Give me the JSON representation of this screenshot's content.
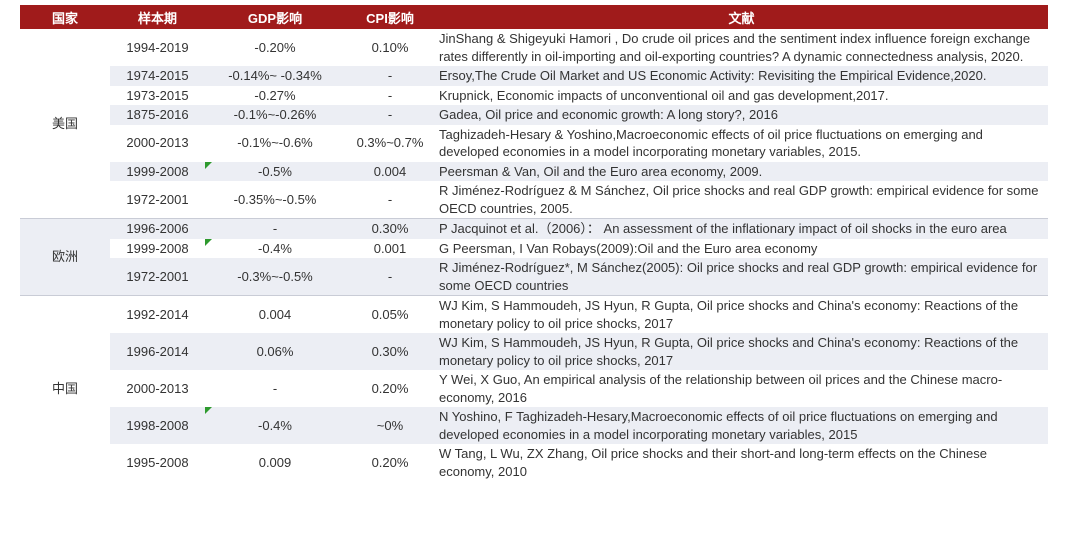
{
  "table": {
    "columns": [
      "国家",
      "样本期",
      "GDP影响",
      "CPI影响",
      "文献"
    ],
    "groups": [
      {
        "country": "美国",
        "rows": [
          [
            "1994-2019",
            "-0.20%",
            "0.10%",
            "JinShang & Shigeyuki Hamori , Do crude oil prices and the sentiment index influence foreign exchange rates differently in oil-importing and oil-exporting countries? A dynamic connectedness analysis, 2020."
          ],
          [
            "1974-2015",
            "-0.14%~ -0.34%",
            "-",
            "Ersoy,The Crude Oil Market and US Economic Activity: Revisiting the Empirical Evidence,2020."
          ],
          [
            "1973-2015",
            "-0.27%",
            "-",
            "Krupnick, Economic impacts of unconventional oil and gas development,2017."
          ],
          [
            "1875-2016",
            "-0.1%~-0.26%",
            "-",
            "Gadea, Oil price and economic growth: A long story?, 2016"
          ],
          [
            "2000-2013",
            "-0.1%~-0.6%",
            "0.3%~0.7%",
            "Taghizadeh-Hesary & Yoshino,Macroeconomic effects of oil price fluctuations on emerging and developed economies in a model incorporating monetary variables, 2015."
          ],
          [
            "1999-2008",
            "-0.5%",
            "0.004",
            "Peersman & Van, Oil and the Euro area economy, 2009."
          ],
          [
            "1972-2001",
            "-0.35%~-0.5%",
            "-",
            "R Jiménez-Rodríguez & M Sánchez, Oil price shocks and real GDP growth: empirical evidence for some OECD countries, 2005."
          ]
        ]
      },
      {
        "country": "欧洲",
        "rows": [
          [
            "1996-2006",
            "-",
            "0.30%",
            "P Jacquinot et al.（2006）： An assessment of the inflationary impact of oil shocks in the euro area"
          ],
          [
            "1999-2008",
            "-0.4%",
            "0.001",
            "G Peersman, I Van Robays(2009):Oil and the Euro area economy"
          ],
          [
            "1972-2001",
            "-0.3%~-0.5%",
            "-",
            "R Jiménez-Rodríguez*, M Sánchez(2005): Oil price shocks and real GDP growth: empirical evidence for some OECD countries"
          ]
        ]
      },
      {
        "country": "中国",
        "rows": [
          [
            "1992-2014",
            "0.004",
            "0.05%",
            "WJ Kim, S Hammoudeh, JS Hyun, R Gupta, Oil price shocks and China's economy: Reactions of the monetary policy to oil price shocks, 2017"
          ],
          [
            "1996-2014",
            "0.06%",
            "0.30%",
            "WJ Kim, S Hammoudeh, JS Hyun, R Gupta, Oil price shocks and China's economy: Reactions of the monetary policy to oil price shocks, 2017"
          ],
          [
            "2000-2013",
            "-",
            "0.20%",
            "Y Wei, X Guo, An empirical analysis of the relationship between oil prices and the Chinese macro-economy, 2016"
          ],
          [
            "1998-2008",
            "-0.4%",
            "~0%",
            "N Yoshino, F Taghizadeh-Hesary,Macroeconomic effects of oil price fluctuations on emerging and developed economies in a model incorporating monetary variables, 2015"
          ],
          [
            "1995-2008",
            "0.009",
            "0.20%",
            "W Tang, L Wu, ZX Zhang, Oil price shocks and their short-and long-term effects on the Chinese economy, 2010"
          ]
        ]
      }
    ]
  }
}
